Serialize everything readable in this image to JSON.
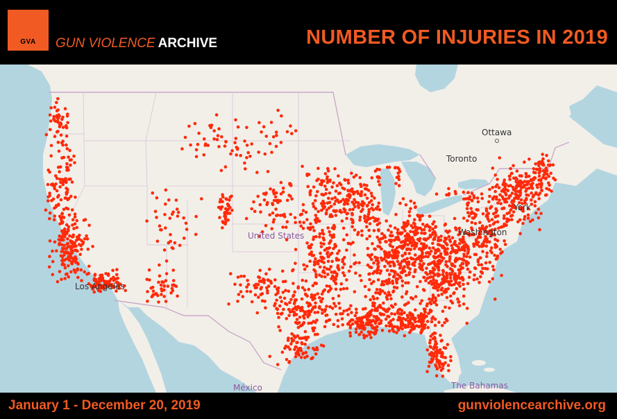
{
  "header": {
    "logo_text": "GVA",
    "brand_part1": "GUN VIOLENCE",
    "brand_part2": "ARCHIVE",
    "title": "NUMBER OF INJURIES IN 2019"
  },
  "map": {
    "labels": {
      "ottawa": "Ottawa",
      "toronto": "Toronto",
      "new_york": "York",
      "washington": "Washington",
      "united_states": "United States",
      "los_angeles": "Los Angeles",
      "mexico": "México",
      "bahamas": "The Bahamas"
    },
    "colors": {
      "water": "#b3d5e0",
      "land": "#f2efe9",
      "us_land": "#f4f1ea",
      "borders": "#c9a9c9",
      "incident": "#ff2a0a"
    },
    "incident_marker": "red-dot"
  },
  "footer": {
    "date_range": "January 1 - December 20, 2019",
    "url": "gunviolencearchive.org"
  }
}
